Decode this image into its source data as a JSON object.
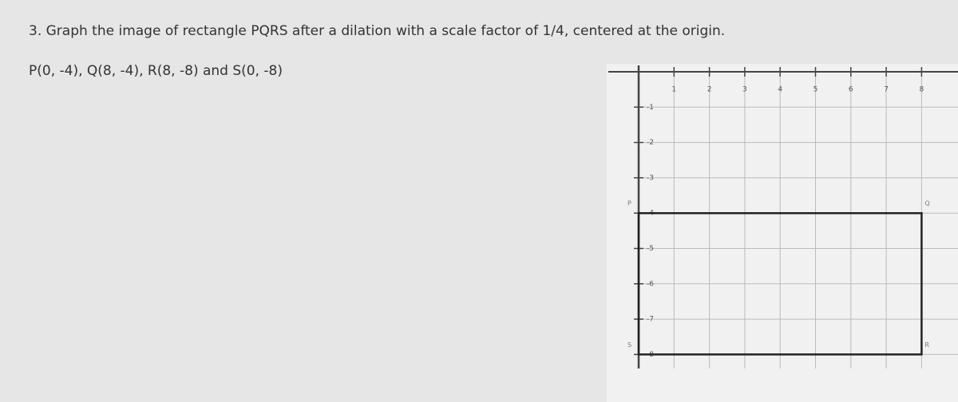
{
  "question": "3. Graph the image of rectangle PQRS after a dilation with a scale factor of 1/4, centered at the origin.",
  "points": "P(0, -4), Q(8, -4), R(8, -8) and  S(0, -8)",
  "graph": {
    "xticks": [
      1,
      2,
      3,
      4,
      5,
      6,
      7,
      8
    ],
    "yticks": [
      -1,
      -2,
      -3,
      -4,
      -5,
      -6,
      -7,
      -8
    ],
    "vertices": [
      {
        "label": "P",
        "x": 0,
        "y": -4
      },
      {
        "label": "Q",
        "x": 8,
        "y": -4
      },
      {
        "label": "R",
        "x": 8,
        "y": -8
      },
      {
        "label": "S",
        "x": 0,
        "y": -8
      }
    ]
  }
}
